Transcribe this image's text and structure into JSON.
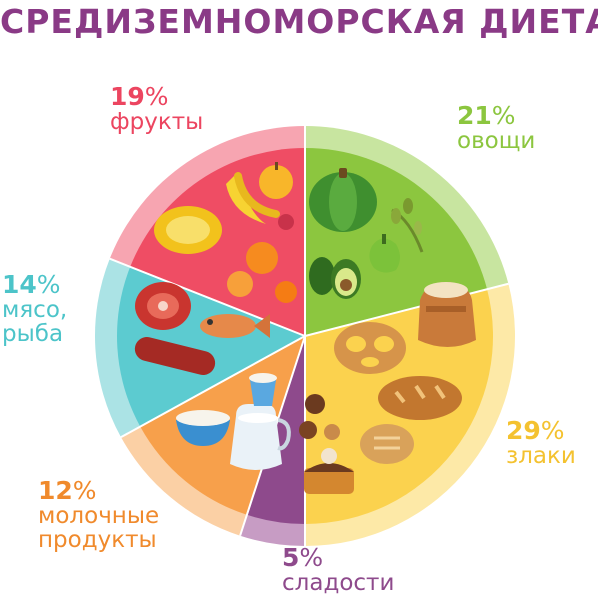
{
  "title": "СРЕДИЗЕМНОМОРСКАЯ ДИЕТА",
  "chart_data": {
    "type": "pie",
    "title": "СРЕДИЗЕМНОМОРСКАЯ ДИЕТА",
    "start_angle_deg": 0,
    "direction": "clockwise",
    "slices": [
      {
        "label": "овощи",
        "value": 21,
        "value_text": "21",
        "color": "#8cc63f",
        "outer_color": "#c8e5a0"
      },
      {
        "label": "злаки",
        "value": 29,
        "value_text": "29",
        "color": "#fbd24e",
        "outer_color": "#fde9a7"
      },
      {
        "label": "сладости",
        "value": 5,
        "value_text": "5",
        "color": "#8e4a8c",
        "outer_color": "#c79cc4"
      },
      {
        "label": "молочные продукты",
        "label_lines": [
          "молочные",
          "продукты"
        ],
        "value": 12,
        "value_text": "12",
        "color": "#f7a04b",
        "outer_color": "#fbd0a5"
      },
      {
        "label": "мясо, рыба",
        "label_lines": [
          "мясо,",
          "рыба"
        ],
        "value": 14,
        "value_text": "14",
        "color": "#5ccbd0",
        "outer_color": "#abe3e5"
      },
      {
        "label": "фрукты",
        "value": 19,
        "value_text": "19",
        "color": "#ef4d64",
        "outer_color": "#f7a5b1"
      }
    ],
    "percent_sign": "%",
    "label_colors": {
      "овощи": "#8cc63f",
      "злаки": "#f4c230",
      "сладости": "#8e4a8c",
      "молочные продукты": "#f08a2c",
      "мясо, рыба": "#4cc4c9",
      "фрукты": "#ec4560"
    }
  }
}
